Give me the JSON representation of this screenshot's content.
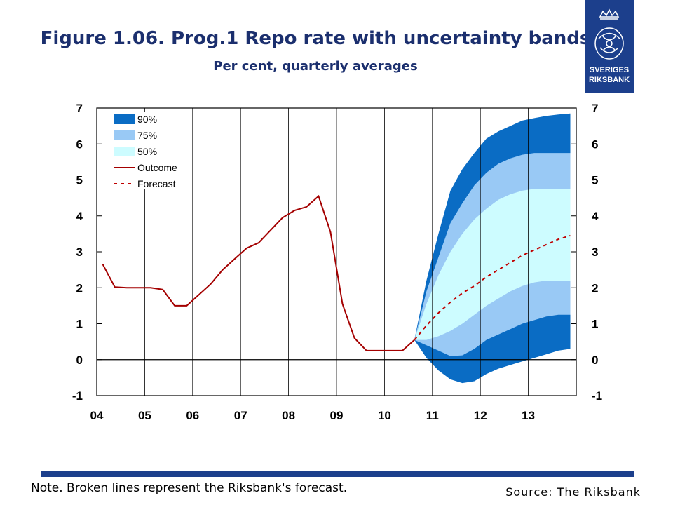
{
  "header": {
    "title": "Figure 1.06. Prog.1 Repo rate with uncertainty bands",
    "subtitle": "Per cent, quarterly averages"
  },
  "logo": {
    "line1": "SVERIGES",
    "line2": "RIKSBANK",
    "icon": "crown-shield-emblem-icon",
    "color": "#1c3f8c"
  },
  "footer": {
    "note": "Note. Broken lines represent the Riksbank's forecast.",
    "source": "Source: The Riksbank"
  },
  "colors": {
    "band90": "#0a6cc4",
    "band75": "#99c9f5",
    "band50": "#cdfcff",
    "outcome": "#a40000",
    "forecast": "#c00000",
    "brand": "#1c3f8c"
  },
  "chart_data": {
    "type": "line",
    "title": "Figure 1.06. Prog.1 Repo rate with uncertainty bands",
    "subtitle": "Per cent, quarterly averages",
    "xlim": [
      2004.0,
      2014.0
    ],
    "ylim": [
      -1,
      7
    ],
    "y_ticks": [
      7,
      6,
      5,
      4,
      3,
      2,
      1,
      0,
      -1
    ],
    "x_tick_labels": [
      "04",
      "05",
      "06",
      "07",
      "08",
      "09",
      "10",
      "11",
      "12",
      "13"
    ],
    "x_tick_values": [
      2004,
      2005,
      2006,
      2007,
      2008,
      2009,
      2010,
      2011,
      2012,
      2013
    ],
    "grid": "vertical-yearly",
    "legend_position": "top-left",
    "legend": [
      "90%",
      "75%",
      "50%",
      "Outcome",
      "Forecast"
    ],
    "series": [
      {
        "name": "Outcome",
        "style": "solid",
        "x": [
          2004.125,
          2004.375,
          2004.625,
          2004.875,
          2005.125,
          2005.375,
          2005.625,
          2005.875,
          2006.125,
          2006.375,
          2006.625,
          2006.875,
          2007.125,
          2007.375,
          2007.625,
          2007.875,
          2008.125,
          2008.375,
          2008.625,
          2008.875,
          2009.125,
          2009.375,
          2009.625,
          2009.875,
          2010.125,
          2010.375,
          2010.625
        ],
        "values": [
          2.65,
          2.02,
          2.0,
          2.0,
          2.0,
          1.95,
          1.5,
          1.5,
          1.8,
          2.1,
          2.5,
          2.8,
          3.1,
          3.25,
          3.6,
          3.95,
          4.15,
          4.25,
          4.55,
          3.55,
          1.55,
          0.6,
          0.25,
          0.25,
          0.25,
          0.25,
          0.55
        ]
      },
      {
        "name": "Forecast",
        "style": "dashed",
        "x": [
          2010.625,
          2010.875,
          2011.125,
          2011.375,
          2011.625,
          2011.875,
          2012.125,
          2012.375,
          2012.625,
          2012.875,
          2013.125,
          2013.375,
          2013.625,
          2013.875
        ],
        "values": [
          0.55,
          0.95,
          1.3,
          1.6,
          1.85,
          2.05,
          2.3,
          2.5,
          2.7,
          2.9,
          3.05,
          3.2,
          3.35,
          3.45
        ]
      }
    ],
    "bands": {
      "x": [
        2010.625,
        2010.875,
        2011.125,
        2011.375,
        2011.625,
        2011.875,
        2012.125,
        2012.375,
        2012.625,
        2012.875,
        2013.125,
        2013.375,
        2013.625,
        2013.875
      ],
      "p90": {
        "lower": [
          0.55,
          0.05,
          -0.3,
          -0.55,
          -0.65,
          -0.6,
          -0.4,
          -0.25,
          -0.15,
          -0.05,
          0.05,
          0.15,
          0.25,
          0.3
        ],
        "upper": [
          0.55,
          2.2,
          3.5,
          4.7,
          5.3,
          5.75,
          6.15,
          6.35,
          6.5,
          6.65,
          6.72,
          6.78,
          6.82,
          6.85
        ]
      },
      "p75": {
        "lower": [
          0.55,
          0.4,
          0.25,
          0.1,
          0.12,
          0.3,
          0.55,
          0.7,
          0.85,
          1.0,
          1.1,
          1.2,
          1.25,
          1.25
        ],
        "upper": [
          0.55,
          1.9,
          2.85,
          3.8,
          4.35,
          4.85,
          5.2,
          5.45,
          5.6,
          5.7,
          5.75,
          5.75,
          5.75,
          5.75
        ]
      },
      "p50": {
        "lower": [
          0.55,
          0.55,
          0.65,
          0.8,
          1.0,
          1.25,
          1.5,
          1.7,
          1.9,
          2.05,
          2.15,
          2.2,
          2.2,
          2.2
        ],
        "upper": [
          0.55,
          1.55,
          2.35,
          3.0,
          3.5,
          3.9,
          4.2,
          4.45,
          4.6,
          4.7,
          4.75,
          4.75,
          4.75,
          4.75
        ]
      }
    }
  }
}
